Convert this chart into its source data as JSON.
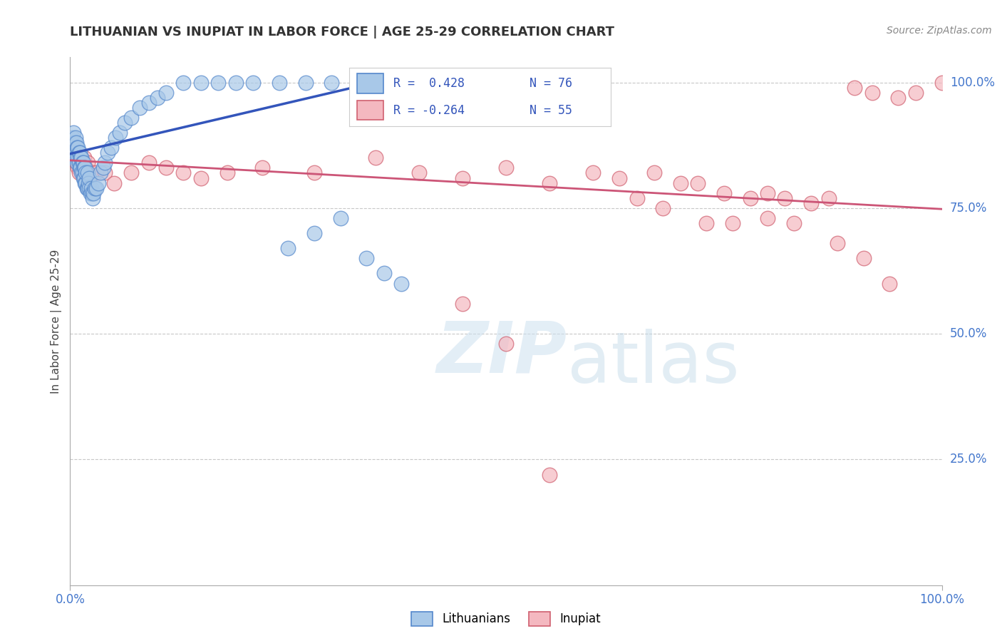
{
  "title": "LITHUANIAN VS INUPIAT IN LABOR FORCE | AGE 25-29 CORRELATION CHART",
  "source_text": "Source: ZipAtlas.com",
  "ylabel": "In Labor Force | Age 25-29",
  "xlim": [
    0.0,
    1.0
  ],
  "ylim": [
    0.0,
    1.05
  ],
  "xtick_labels": [
    "0.0%",
    "100.0%"
  ],
  "ytick_labels": [
    "25.0%",
    "50.0%",
    "75.0%",
    "100.0%"
  ],
  "ytick_positions": [
    0.25,
    0.5,
    0.75,
    1.0
  ],
  "watermark_zip": "ZIP",
  "watermark_atlas": "atlas",
  "legend_r1": "R =  0.428",
  "legend_n1": "N = 76",
  "legend_r2": "R = -0.264",
  "legend_n2": "N = 55",
  "color_blue": "#a8c8e8",
  "color_pink": "#f4b8c0",
  "edge_blue": "#5588cc",
  "edge_pink": "#d06070",
  "trendline_blue": "#3355bb",
  "trendline_pink": "#cc5577",
  "background_color": "#ffffff",
  "grid_color": "#c8c8c8",
  "label_blue": "Lithuanians",
  "label_pink": "Inupiat",
  "blue_trend_x": [
    0.0,
    0.35
  ],
  "blue_trend_y": [
    0.858,
    1.0
  ],
  "pink_trend_x": [
    0.0,
    1.0
  ],
  "pink_trend_y": [
    0.845,
    0.748
  ],
  "blue_scatter_x": [
    0.001,
    0.002,
    0.003,
    0.003,
    0.004,
    0.004,
    0.005,
    0.005,
    0.006,
    0.006,
    0.007,
    0.007,
    0.008,
    0.008,
    0.009,
    0.009,
    0.01,
    0.01,
    0.011,
    0.011,
    0.012,
    0.012,
    0.013,
    0.013,
    0.014,
    0.014,
    0.015,
    0.015,
    0.016,
    0.016,
    0.017,
    0.017,
    0.018,
    0.018,
    0.019,
    0.02,
    0.02,
    0.021,
    0.022,
    0.022,
    0.023,
    0.024,
    0.025,
    0.026,
    0.027,
    0.028,
    0.03,
    0.032,
    0.035,
    0.038,
    0.04,
    0.043,
    0.047,
    0.052,
    0.057,
    0.063,
    0.07,
    0.08,
    0.09,
    0.1,
    0.11,
    0.13,
    0.15,
    0.17,
    0.19,
    0.21,
    0.24,
    0.27,
    0.3,
    0.33,
    0.25,
    0.28,
    0.31,
    0.34,
    0.36,
    0.38
  ],
  "blue_scatter_y": [
    0.87,
    0.88,
    0.86,
    0.89,
    0.87,
    0.9,
    0.85,
    0.88,
    0.86,
    0.89,
    0.85,
    0.88,
    0.84,
    0.87,
    0.85,
    0.87,
    0.84,
    0.86,
    0.83,
    0.86,
    0.83,
    0.85,
    0.82,
    0.85,
    0.82,
    0.84,
    0.81,
    0.84,
    0.81,
    0.83,
    0.8,
    0.83,
    0.8,
    0.82,
    0.79,
    0.79,
    0.82,
    0.8,
    0.79,
    0.81,
    0.78,
    0.79,
    0.78,
    0.77,
    0.78,
    0.79,
    0.79,
    0.8,
    0.82,
    0.83,
    0.84,
    0.86,
    0.87,
    0.89,
    0.9,
    0.92,
    0.93,
    0.95,
    0.96,
    0.97,
    0.98,
    1.0,
    1.0,
    1.0,
    1.0,
    1.0,
    1.0,
    1.0,
    1.0,
    1.0,
    0.67,
    0.7,
    0.73,
    0.65,
    0.62,
    0.6
  ],
  "pink_scatter_x": [
    0.003,
    0.005,
    0.007,
    0.009,
    0.01,
    0.012,
    0.014,
    0.016,
    0.018,
    0.02,
    0.025,
    0.03,
    0.04,
    0.05,
    0.07,
    0.09,
    0.11,
    0.13,
    0.15,
    0.18,
    0.22,
    0.28,
    0.35,
    0.4,
    0.45,
    0.5,
    0.55,
    0.6,
    0.63,
    0.67,
    0.7,
    0.72,
    0.75,
    0.78,
    0.8,
    0.82,
    0.85,
    0.87,
    0.9,
    0.92,
    0.95,
    0.97,
    1.0,
    0.65,
    0.68,
    0.73,
    0.76,
    0.8,
    0.83,
    0.88,
    0.91,
    0.94,
    0.45,
    0.5,
    0.55
  ],
  "pink_scatter_y": [
    0.85,
    0.87,
    0.84,
    0.83,
    0.82,
    0.83,
    0.82,
    0.85,
    0.83,
    0.84,
    0.82,
    0.82,
    0.82,
    0.8,
    0.82,
    0.84,
    0.83,
    0.82,
    0.81,
    0.82,
    0.83,
    0.82,
    0.85,
    0.82,
    0.81,
    0.83,
    0.8,
    0.82,
    0.81,
    0.82,
    0.8,
    0.8,
    0.78,
    0.77,
    0.78,
    0.77,
    0.76,
    0.77,
    0.99,
    0.98,
    0.97,
    0.98,
    1.0,
    0.77,
    0.75,
    0.72,
    0.72,
    0.73,
    0.72,
    0.68,
    0.65,
    0.6,
    0.56,
    0.48,
    0.22
  ]
}
